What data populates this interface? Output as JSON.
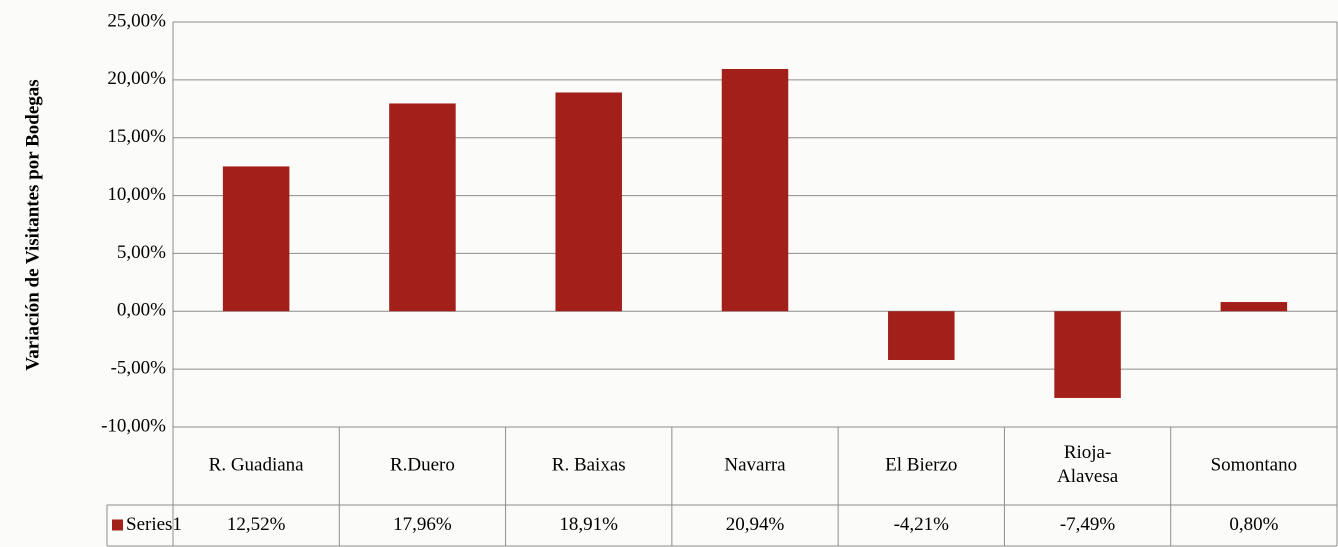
{
  "chart_data": {
    "type": "bar",
    "y_axis_label": "Variación de Visitantes por Bodegas",
    "categories": [
      "R. Guadiana",
      "R.Duero",
      "R. Baixas",
      "Navarra",
      "El Bierzo",
      "Rioja-Alavesa",
      "Somontano"
    ],
    "series": [
      {
        "name": "Series1",
        "color": "#a3201a",
        "values": [
          12.52,
          17.96,
          18.91,
          20.94,
          -4.21,
          -7.49,
          0.8
        ],
        "value_labels": [
          "12,52%",
          "17,96%",
          "18,91%",
          "20,94%",
          "-4,21%",
          "-7,49%",
          "0,80%"
        ]
      }
    ],
    "ylim": [
      -10,
      25
    ],
    "yticks": [
      {
        "value": -10,
        "label": "-10,00%"
      },
      {
        "value": -5,
        "label": "-5,00%"
      },
      {
        "value": 0,
        "label": "0,00%"
      },
      {
        "value": 5,
        "label": "5,00%"
      },
      {
        "value": 10,
        "label": "10,00%"
      },
      {
        "value": 15,
        "label": "15,00%"
      },
      {
        "value": 20,
        "label": "20,00%"
      },
      {
        "value": 25,
        "label": "25,00%"
      }
    ],
    "grid": true,
    "data_table": true
  }
}
